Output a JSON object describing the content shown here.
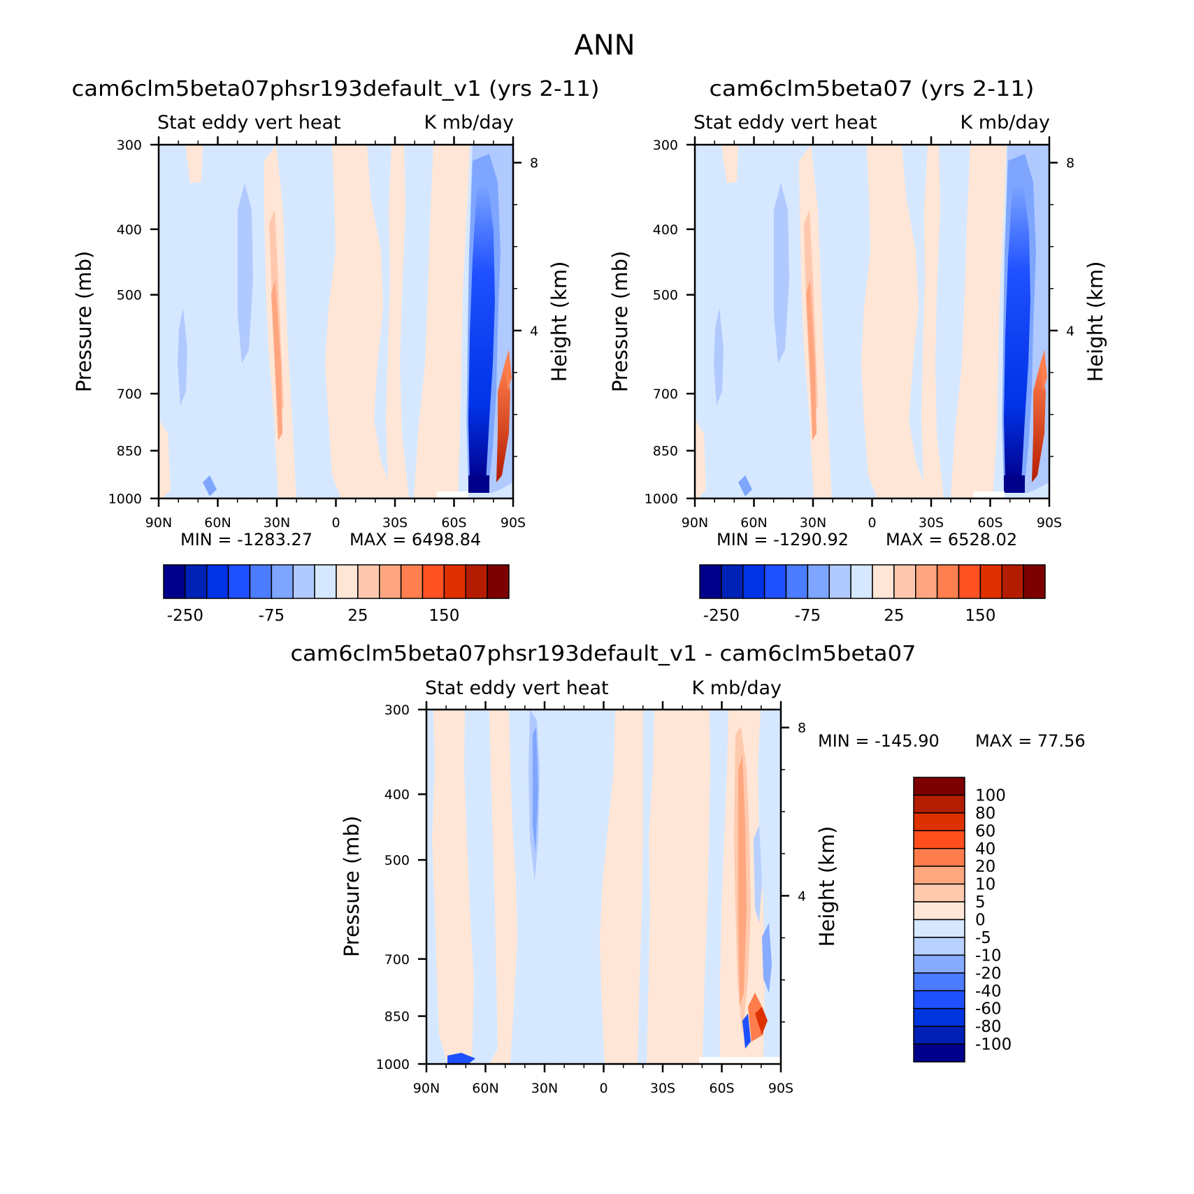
{
  "page_title": "ANN",
  "colors": {
    "panel_palette": [
      "#00008b",
      "#0021b5",
      "#0032e6",
      "#1e50ff",
      "#4c7cff",
      "#7ea6ff",
      "#b0caff",
      "#d6e8ff",
      "#ffe6d6",
      "#ffc8ae",
      "#ffa680",
      "#ff7f4e",
      "#ff5122",
      "#e03000",
      "#b41c00",
      "#7d0000"
    ],
    "diff_palette": [
      "#00008b",
      "#0020b5",
      "#0035e0",
      "#1e50ff",
      "#4c7cff",
      "#86abff",
      "#b7d0ff",
      "#d6e8ff",
      "#ffe6d6",
      "#ffc9ae",
      "#ffa77e",
      "#ff7c4c",
      "#ff4f1d",
      "#de3100",
      "#b31e00",
      "#7d0000"
    ]
  },
  "chart_data": [
    {
      "type": "heatmap",
      "title": "cam6clm5beta07phsr193default_v1 (yrs 2-11)",
      "subtitle_left": "Stat eddy vert heat",
      "subtitle_right": "K mb/day",
      "ylabel": "Pressure (mb)",
      "ylabel_right": "Height (km)",
      "x_ticks": [
        "90N",
        "60N",
        "30N",
        "0",
        "30S",
        "60S",
        "90S"
      ],
      "y_ticks": [
        "300",
        "400",
        "500",
        "700",
        "850",
        "1000"
      ],
      "y_ticks_right": [
        "8",
        "4"
      ],
      "xlim": [
        90,
        -90
      ],
      "ylim": [
        1000,
        300
      ],
      "y_scale": "log",
      "min_label": "MIN = -1283.27",
      "max_label": "MAX = 6498.84",
      "colorbar_labels": [
        "-250",
        "-75",
        "25",
        "150"
      ]
    },
    {
      "type": "heatmap",
      "title": "cam6clm5beta07 (yrs 2-11)",
      "subtitle_left": "Stat eddy vert heat",
      "subtitle_right": "K mb/day",
      "ylabel": "Pressure (mb)",
      "ylabel_right": "Height (km)",
      "x_ticks": [
        "90N",
        "60N",
        "30N",
        "0",
        "30S",
        "60S",
        "90S"
      ],
      "y_ticks": [
        "300",
        "400",
        "500",
        "700",
        "850",
        "1000"
      ],
      "y_ticks_right": [
        "8",
        "4"
      ],
      "xlim": [
        90,
        -90
      ],
      "ylim": [
        1000,
        300
      ],
      "y_scale": "log",
      "min_label": "MIN = -1290.92",
      "max_label": "MAX = 6528.02",
      "colorbar_labels": [
        "-250",
        "-75",
        "25",
        "150"
      ]
    },
    {
      "type": "heatmap",
      "title": "cam6clm5beta07phsr193default_v1 - cam6clm5beta07",
      "subtitle_left": "Stat eddy vert heat",
      "subtitle_right": "K mb/day",
      "ylabel": "Pressure (mb)",
      "ylabel_right": "Height (km)",
      "x_ticks": [
        "90N",
        "60N",
        "30N",
        "0",
        "30S",
        "60S",
        "90S"
      ],
      "y_ticks": [
        "300",
        "400",
        "500",
        "700",
        "850",
        "1000"
      ],
      "y_ticks_right": [
        "8",
        "4"
      ],
      "xlim": [
        90,
        -90
      ],
      "ylim": [
        1000,
        300
      ],
      "y_scale": "log",
      "min_label": "MIN = -145.90",
      "max_label": "MAX =  77.56",
      "colorbar_labels": [
        "100",
        "80",
        "60",
        "40",
        "20",
        "10",
        "5",
        "0",
        "-5",
        "-10",
        "-20",
        "-40",
        "-60",
        "-80",
        "-100"
      ]
    }
  ]
}
